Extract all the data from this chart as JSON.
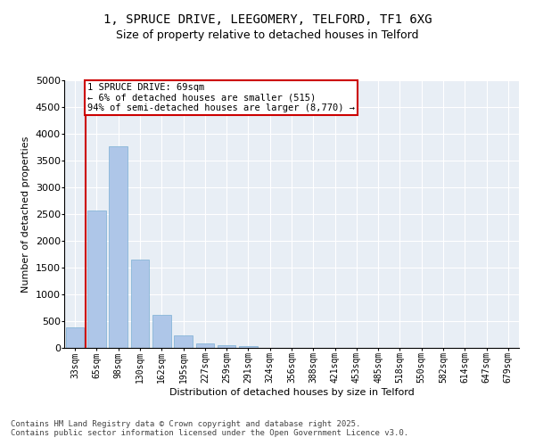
{
  "title_line1": "1, SPRUCE DRIVE, LEEGOMERY, TELFORD, TF1 6XG",
  "title_line2": "Size of property relative to detached houses in Telford",
  "xlabel": "Distribution of detached houses by size in Telford",
  "ylabel": "Number of detached properties",
  "categories": [
    "33sqm",
    "65sqm",
    "98sqm",
    "130sqm",
    "162sqm",
    "195sqm",
    "227sqm",
    "259sqm",
    "291sqm",
    "324sqm",
    "356sqm",
    "388sqm",
    "421sqm",
    "453sqm",
    "485sqm",
    "518sqm",
    "550sqm",
    "582sqm",
    "614sqm",
    "647sqm",
    "679sqm"
  ],
  "values": [
    380,
    2560,
    3760,
    1650,
    620,
    240,
    90,
    55,
    35,
    0,
    0,
    0,
    0,
    0,
    0,
    0,
    0,
    0,
    0,
    0,
    0
  ],
  "bar_color": "#aec6e8",
  "bar_edge_color": "#7aafd4",
  "vline_x_index": 1,
  "vline_color": "#cc0000",
  "annotation_text": "1 SPRUCE DRIVE: 69sqm\n← 6% of detached houses are smaller (515)\n94% of semi-detached houses are larger (8,770) →",
  "annotation_box_color": "#cc0000",
  "ylim": [
    0,
    5000
  ],
  "yticks": [
    0,
    500,
    1000,
    1500,
    2000,
    2500,
    3000,
    3500,
    4000,
    4500,
    5000
  ],
  "background_color": "#e8eef5",
  "footer_text": "Contains HM Land Registry data © Crown copyright and database right 2025.\nContains public sector information licensed under the Open Government Licence v3.0.",
  "title_fontsize": 10,
  "subtitle_fontsize": 9,
  "axis_label_fontsize": 8,
  "tick_fontsize": 7,
  "annotation_fontsize": 7.5,
  "footer_fontsize": 6.5
}
